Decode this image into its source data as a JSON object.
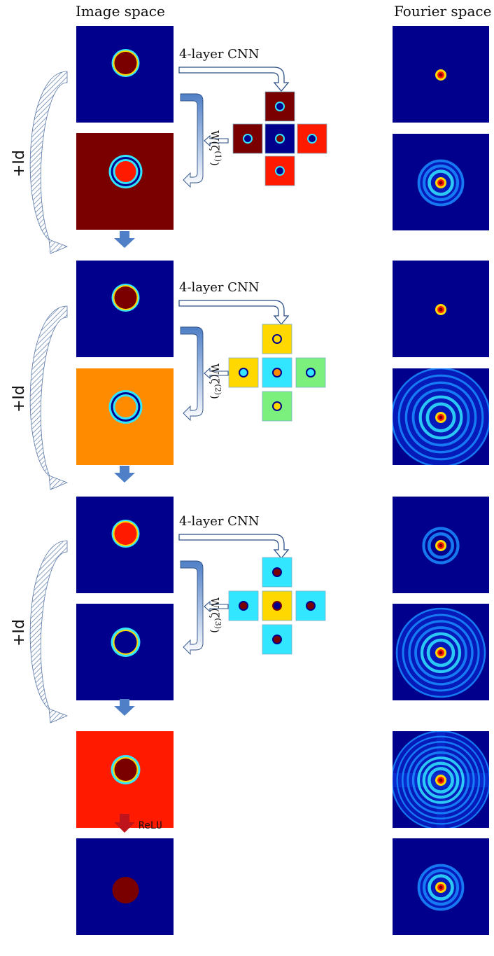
{
  "headers": {
    "image_space": "Image space",
    "fourier_space": "Fourier space"
  },
  "labels": {
    "cnn": "4-layer CNN",
    "identity": "+Id",
    "relu": "ReLU",
    "w_prefix": "W(",
    "w_suffix": ")",
    "zeta": "ζ",
    "stage_exponents": [
      "(1)",
      "(2)",
      "(3)"
    ]
  },
  "colors": {
    "deep_blue": "#00008c",
    "dark_red": "#7a0000",
    "red": "#ff1a00",
    "orange": "#ff8c00",
    "yellow": "#ffd800",
    "cyan": "#33e6ff",
    "green": "#7cf07c",
    "arrow_blue": "#4f7fc6",
    "relu_red": "#c0141c",
    "outline_blue": "#2c4f86"
  },
  "image_panels": [
    {
      "name": "stage1-input",
      "bg": "deep_blue",
      "disk": "dark_red",
      "ring": "thin"
    },
    {
      "name": "stage1-residual",
      "bg": "dark_red",
      "disk": "red",
      "ring": "double"
    },
    {
      "name": "stage2-input",
      "bg": "deep_blue",
      "disk": "dark_red",
      "ring": "thin"
    },
    {
      "name": "stage2-residual",
      "bg": "orange",
      "disk": "orange",
      "ring": "double"
    },
    {
      "name": "stage3-input",
      "bg": "deep_blue",
      "disk": "red",
      "ring": "thin"
    },
    {
      "name": "stage3-residual",
      "bg": "deep_blue",
      "disk": "deep_blue",
      "ring": "speckle"
    },
    {
      "name": "pre-relu",
      "bg": "red",
      "disk": "dark_red",
      "ring": "speckle"
    },
    {
      "name": "relu-output",
      "bg": "deep_blue",
      "disk": "dark_red",
      "ring": "none"
    }
  ],
  "fourier_panels": [
    {
      "name": "fourier-1",
      "rings": 1,
      "spread": 0.25,
      "style": "plain"
    },
    {
      "name": "fourier-2",
      "rings": 3,
      "spread": 0.45,
      "style": "plain"
    },
    {
      "name": "fourier-3",
      "rings": 1,
      "spread": 0.25,
      "style": "plain"
    },
    {
      "name": "fourier-4",
      "rings": 6,
      "spread": 1.0,
      "style": "plain"
    },
    {
      "name": "fourier-5",
      "rings": 2,
      "spread": 0.35,
      "style": "plain"
    },
    {
      "name": "fourier-6",
      "rings": 6,
      "spread": 0.9,
      "style": "plain"
    },
    {
      "name": "fourier-7",
      "rings": 8,
      "spread": 1.0,
      "style": "cross"
    },
    {
      "name": "fourier-8",
      "rings": 3,
      "spread": 0.45,
      "style": "plain"
    }
  ],
  "filters": [
    {
      "name": "stage1-filters",
      "tiles": [
        {
          "pos": "top",
          "bg": "dark_red",
          "disk": "deep_blue",
          "rim": "cyan"
        },
        {
          "pos": "left",
          "bg": "dark_red",
          "disk": "deep_blue",
          "rim": "cyan"
        },
        {
          "pos": "center",
          "bg": "deep_blue",
          "disk": "dark_red",
          "rim": "cyan"
        },
        {
          "pos": "right",
          "bg": "red",
          "disk": "deep_blue",
          "rim": "cyan"
        },
        {
          "pos": "bottom",
          "bg": "red",
          "disk": "deep_blue",
          "rim": "cyan"
        }
      ]
    },
    {
      "name": "stage2-filters",
      "tiles": [
        {
          "pos": "top",
          "bg": "yellow",
          "disk": "yellow",
          "rim": "deep_blue"
        },
        {
          "pos": "left",
          "bg": "yellow",
          "disk": "cyan",
          "rim": "deep_blue"
        },
        {
          "pos": "center",
          "bg": "cyan",
          "disk": "orange",
          "rim": "deep_blue"
        },
        {
          "pos": "right",
          "bg": "green",
          "disk": "cyan",
          "rim": "deep_blue"
        },
        {
          "pos": "bottom",
          "bg": "green",
          "disk": "yellow",
          "rim": "deep_blue"
        }
      ]
    },
    {
      "name": "stage3-filters",
      "tiles": [
        {
          "pos": "top",
          "bg": "cyan",
          "disk": "dark_red",
          "rim": "deep_blue"
        },
        {
          "pos": "left",
          "bg": "cyan",
          "disk": "dark_red",
          "rim": "deep_blue"
        },
        {
          "pos": "center",
          "bg": "yellow",
          "disk": "deep_blue",
          "rim": "dark_red"
        },
        {
          "pos": "right",
          "bg": "cyan",
          "disk": "dark_red",
          "rim": "deep_blue"
        },
        {
          "pos": "bottom",
          "bg": "cyan",
          "disk": "dark_red",
          "rim": "deep_blue"
        }
      ]
    }
  ]
}
